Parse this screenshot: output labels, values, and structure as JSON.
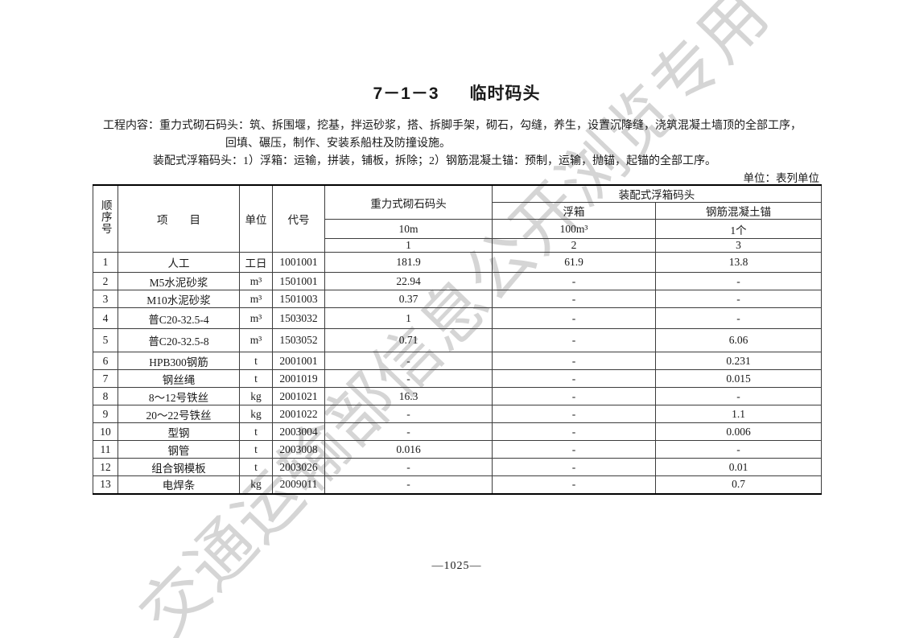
{
  "page": {
    "title_number": "7－1－3",
    "title_text": "临时码头",
    "unit_note": "单位：表列单位",
    "page_number": "—1025—",
    "watermark_text": "交通运输部信息公开浏览专用",
    "watermark_color": "#d5d5d5",
    "accent_colors": {
      "text": "#1a1a1a",
      "table_border": "#3c3c3c",
      "table_border_heavy": "#000000"
    }
  },
  "work_content": {
    "line1": "工程内容：重力式砌石码头：筑、拆围堰，挖基，拌运砂浆，搭、拆脚手架，砌石，勾缝，养生，设置沉降缝，浇筑混凝土墙顶的全部工序，",
    "line2": "回填、碾压，制作、安装系船柱及防撞设施。",
    "line3": "装配式浮箱码头：1）浮箱：运输，拼装，铺板，拆除；2）钢筋混凝土锚：预制，运输，抛锚，起锚的全部工序。"
  },
  "table": {
    "header": {
      "seq": "顺序号",
      "item": "项　　目",
      "unit": "单位",
      "code": "代号",
      "col_gravity": "重力式砌石码头",
      "col_assembled": "装配式浮箱码头",
      "sub_float": "浮箱",
      "sub_anchor": "钢筋混凝土锚",
      "qty_gravity": "10m",
      "qty_float": "100m³",
      "qty_anchor": "1个",
      "num_gravity": "1",
      "num_float": "2",
      "num_anchor": "3"
    },
    "rows": [
      {
        "seq": "1",
        "item": "人工",
        "unit": "工日",
        "code": "1001001",
        "v_gravity": "181.9",
        "v_float": "61.9",
        "v_anchor": "13.8"
      },
      {
        "seq": "2",
        "item": "M5水泥砂浆",
        "unit": "m³",
        "code": "1501001",
        "v_gravity": "22.94",
        "v_float": "-",
        "v_anchor": "-"
      },
      {
        "seq": "3",
        "item": "M10水泥砂浆",
        "unit": "m³",
        "code": "1501003",
        "v_gravity": "0.37",
        "v_float": "-",
        "v_anchor": "-"
      },
      {
        "seq": "4",
        "item": "普C20-32.5-4",
        "unit": "m³",
        "code": "1503032",
        "v_gravity": "1",
        "v_float": "-",
        "v_anchor": "-"
      },
      {
        "seq": "5",
        "item": "普C20-32.5-8",
        "unit": "m³",
        "code": "1503052",
        "v_gravity": "0.71",
        "v_float": "-",
        "v_anchor": "6.06"
      },
      {
        "seq": "6",
        "item": "HPB300钢筋",
        "unit": "t",
        "code": "2001001",
        "v_gravity": "-",
        "v_float": "-",
        "v_anchor": "0.231"
      },
      {
        "seq": "7",
        "item": "钢丝绳",
        "unit": "t",
        "code": "2001019",
        "v_gravity": "-",
        "v_float": "-",
        "v_anchor": "0.015"
      },
      {
        "seq": "8",
        "item": "8～12号铁丝",
        "unit": "kg",
        "code": "2001021",
        "v_gravity": "16.3",
        "v_float": "-",
        "v_anchor": "-"
      },
      {
        "seq": "9",
        "item": "20～22号铁丝",
        "unit": "kg",
        "code": "2001022",
        "v_gravity": "-",
        "v_float": "-",
        "v_anchor": "1.1"
      },
      {
        "seq": "10",
        "item": "型钢",
        "unit": "t",
        "code": "2003004",
        "v_gravity": "-",
        "v_float": "-",
        "v_anchor": "0.006"
      },
      {
        "seq": "11",
        "item": "钢管",
        "unit": "t",
        "code": "2003008",
        "v_gravity": "0.016",
        "v_float": "-",
        "v_anchor": "-"
      },
      {
        "seq": "12",
        "item": "组合钢模板",
        "unit": "t",
        "code": "2003026",
        "v_gravity": "-",
        "v_float": "-",
        "v_anchor": "0.01"
      },
      {
        "seq": "13",
        "item": "电焊条",
        "unit": "kg",
        "code": "2009011",
        "v_gravity": "-",
        "v_float": "-",
        "v_anchor": "0.7"
      }
    ]
  }
}
